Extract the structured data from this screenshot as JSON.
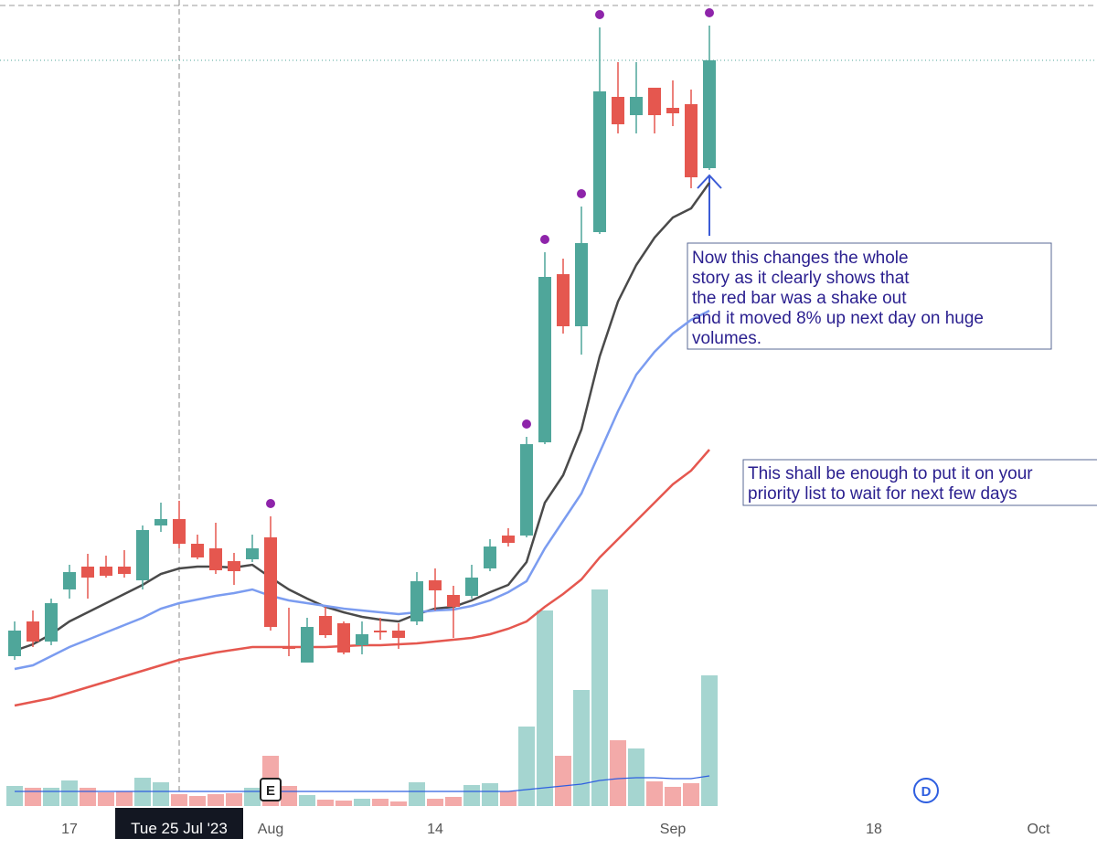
{
  "chart_data": {
    "type": "candlestick",
    "xlim": [
      -0.8,
      59.2
    ],
    "ylim": [
      0,
      929
    ],
    "y2lim": [
      0,
      882
    ],
    "xticks": [
      {
        "value": 3,
        "label": "17"
      },
      {
        "value": 14,
        "label": "Aug"
      },
      {
        "value": 23,
        "label": "14"
      },
      {
        "value": 36,
        "label": "Sep"
      },
      {
        "value": 47,
        "label": "18"
      },
      {
        "value": 56,
        "label": "Oct"
      }
    ],
    "crosshair": {
      "value": 9,
      "label": "Tue 25 Jul '23"
    },
    "up_color": "#4fa69a",
    "down_color": "#e5574f",
    "volume_up_color": "#a5d5d0",
    "volume_down_color": "#f3aaa9",
    "open": [
      211,
      249,
      227,
      284,
      309,
      309,
      309,
      294,
      354,
      361,
      334,
      329,
      315,
      317,
      341,
      221,
      204,
      255,
      247,
      223,
      239,
      239,
      249,
      294,
      278,
      277,
      307,
      343,
      343,
      445,
      629,
      572,
      675,
      823,
      803,
      833,
      811,
      815,
      745
    ],
    "high": [
      249,
      261,
      274,
      311,
      323,
      321,
      327,
      354,
      379,
      381,
      344,
      357,
      324,
      344,
      364,
      264,
      253,
      265,
      249,
      249,
      253,
      247,
      303,
      307,
      288,
      311,
      339,
      351,
      451,
      653,
      646,
      703,
      899,
      861,
      861,
      833,
      841,
      831,
      901
    ],
    "low": [
      207,
      221,
      223,
      274,
      274,
      297,
      297,
      284,
      347,
      329,
      317,
      301,
      289,
      314,
      239,
      211,
      204,
      231,
      213,
      213,
      229,
      219,
      245,
      261,
      231,
      274,
      304,
      331,
      341,
      443,
      564,
      541,
      673,
      783,
      783,
      783,
      791,
      723,
      743
    ],
    "close": [
      239,
      227,
      269,
      303,
      297,
      299,
      301,
      349,
      361,
      334,
      319,
      305,
      304,
      329,
      243,
      219,
      243,
      234,
      215,
      235,
      237,
      231,
      293,
      283,
      265,
      297,
      331,
      335,
      443,
      626,
      572,
      663,
      829,
      793,
      823,
      803,
      805,
      735,
      863
    ],
    "volume": [
      22,
      20,
      20,
      28,
      20,
      15,
      16,
      31,
      26,
      13,
      11,
      13,
      14,
      20,
      55,
      22,
      12,
      7,
      6,
      8,
      8,
      5,
      26,
      8,
      10,
      23,
      25,
      16,
      87,
      214,
      55,
      127,
      237,
      72,
      63,
      27,
      21,
      25,
      143
    ],
    "series": [
      {
        "color": "#4a4a4a",
        "values": [
          217,
          224,
          235,
          249,
          259,
          269,
          279,
          289,
          301,
          307,
          309,
          309,
          308,
          311,
          297,
          284,
          274,
          265,
          259,
          254,
          251,
          249,
          257,
          263,
          265,
          272,
          281,
          289,
          314,
          379,
          409,
          459,
          539,
          599,
          639,
          669,
          691,
          701,
          729
        ]
      },
      {
        "color": "#7b9cf0",
        "values": [
          197,
          201,
          211,
          221,
          229,
          237,
          245,
          253,
          263,
          269,
          273,
          277,
          280,
          284,
          277,
          272,
          269,
          266,
          263,
          261,
          259,
          257,
          259,
          261,
          262,
          266,
          272,
          281,
          293,
          329,
          359,
          389,
          434,
          479,
          519,
          544,
          564,
          579,
          589
        ]
      },
      {
        "color": "#e5574f",
        "values": [
          157,
          161,
          165,
          171,
          177,
          183,
          189,
          195,
          201,
          207,
          211,
          215,
          218,
          221,
          221,
          221,
          221,
          221,
          222,
          223,
          223,
          224,
          225,
          227,
          229,
          231,
          235,
          241,
          249,
          265,
          279,
          295,
          319,
          339,
          359,
          379,
          399,
          414,
          437
        ]
      },
      {
        "color": "#2f5fe0",
        "axis": "y2",
        "values": [
          16,
          16,
          16,
          16,
          16,
          16,
          16,
          16,
          16,
          16,
          16,
          16,
          16,
          16,
          16,
          16,
          16,
          16,
          16,
          16,
          16,
          16,
          16,
          16,
          16,
          16,
          16,
          16,
          18,
          20,
          22,
          24,
          28,
          30,
          31,
          31,
          30,
          30,
          33
        ]
      }
    ],
    "signal_markers": [
      14,
      28,
      29,
      31,
      32,
      38
    ],
    "signal_color": "#8e24aa",
    "earnings_marker": "E",
    "dividend_marker": "D",
    "annotations": [
      {
        "lines": [
          "Now this changes the whole",
          "story as it clearly shows that",
          "the red bar was a shake out",
          "and it moved 8% up next day on huge",
          "volumes."
        ]
      },
      {
        "lines": [
          "This shall be enough to put it on your",
          "priority list to wait for next few days"
        ]
      }
    ]
  }
}
